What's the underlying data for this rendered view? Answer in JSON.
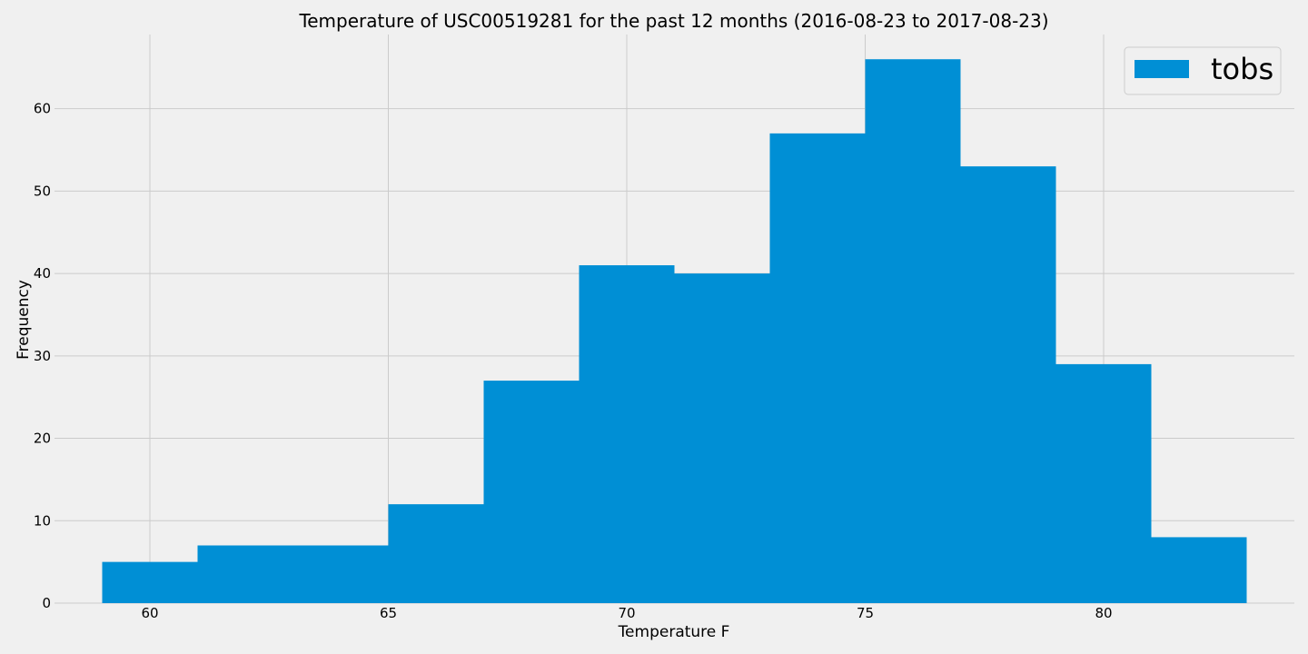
{
  "chart_data": {
    "type": "bar",
    "title": "Temperature of USC00519281 for the past 12 months (2016-08-23 to 2017-08-23)",
    "xlabel": "Temperature F",
    "ylabel": "Frequency",
    "xlim": [
      58,
      84
    ],
    "ylim": [
      0,
      69
    ],
    "xticks": [
      60,
      65,
      70,
      75,
      80
    ],
    "yticks": [
      0,
      10,
      20,
      30,
      40,
      50,
      60
    ],
    "grid": true,
    "legend": "top-right",
    "series": [
      {
        "name": "tobs",
        "color": "#008fd5",
        "bins": [
          {
            "x0": 59,
            "x1": 61,
            "value": 5
          },
          {
            "x0": 61,
            "x1": 63,
            "value": 7
          },
          {
            "x0": 63,
            "x1": 65,
            "value": 7
          },
          {
            "x0": 65,
            "x1": 67,
            "value": 12
          },
          {
            "x0": 67,
            "x1": 69,
            "value": 27
          },
          {
            "x0": 69,
            "x1": 71,
            "value": 41
          },
          {
            "x0": 71,
            "x1": 73,
            "value": 40
          },
          {
            "x0": 73,
            "x1": 75,
            "value": 57
          },
          {
            "x0": 75,
            "x1": 77,
            "value": 66
          },
          {
            "x0": 77,
            "x1": 79,
            "value": 53
          },
          {
            "x0": 79,
            "x1": 81,
            "value": 29
          },
          {
            "x0": 81,
            "x1": 83,
            "value": 8
          }
        ]
      }
    ]
  }
}
